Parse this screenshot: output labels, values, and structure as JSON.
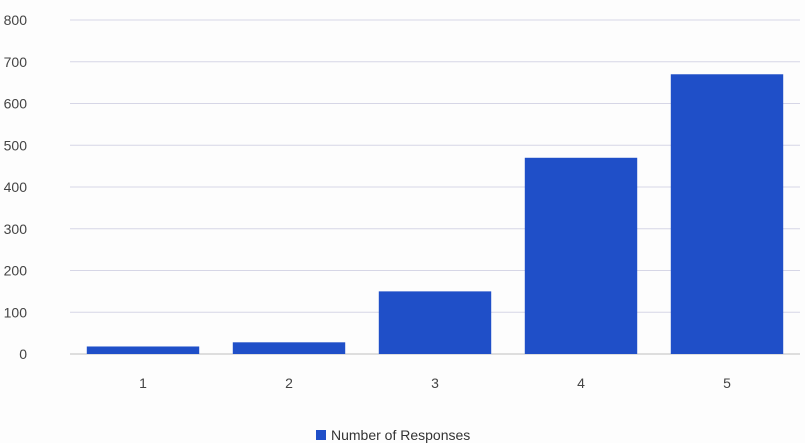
{
  "chart_data": {
    "type": "bar",
    "categories": [
      "1",
      "2",
      "3",
      "4",
      "5"
    ],
    "series": [
      {
        "name": "Number of Responses",
        "values": [
          18,
          28,
          150,
          470,
          670
        ]
      }
    ],
    "ylim": [
      0,
      800
    ],
    "yticks": [
      "0",
      "100",
      "200",
      "300",
      "400",
      "500",
      "600",
      "700",
      "800"
    ],
    "grid": true,
    "legend_position": "bottom",
    "colors": {
      "bar": "#1f4fc8",
      "grid": "#d6d6e6",
      "axis": "#bfbfbf"
    }
  }
}
